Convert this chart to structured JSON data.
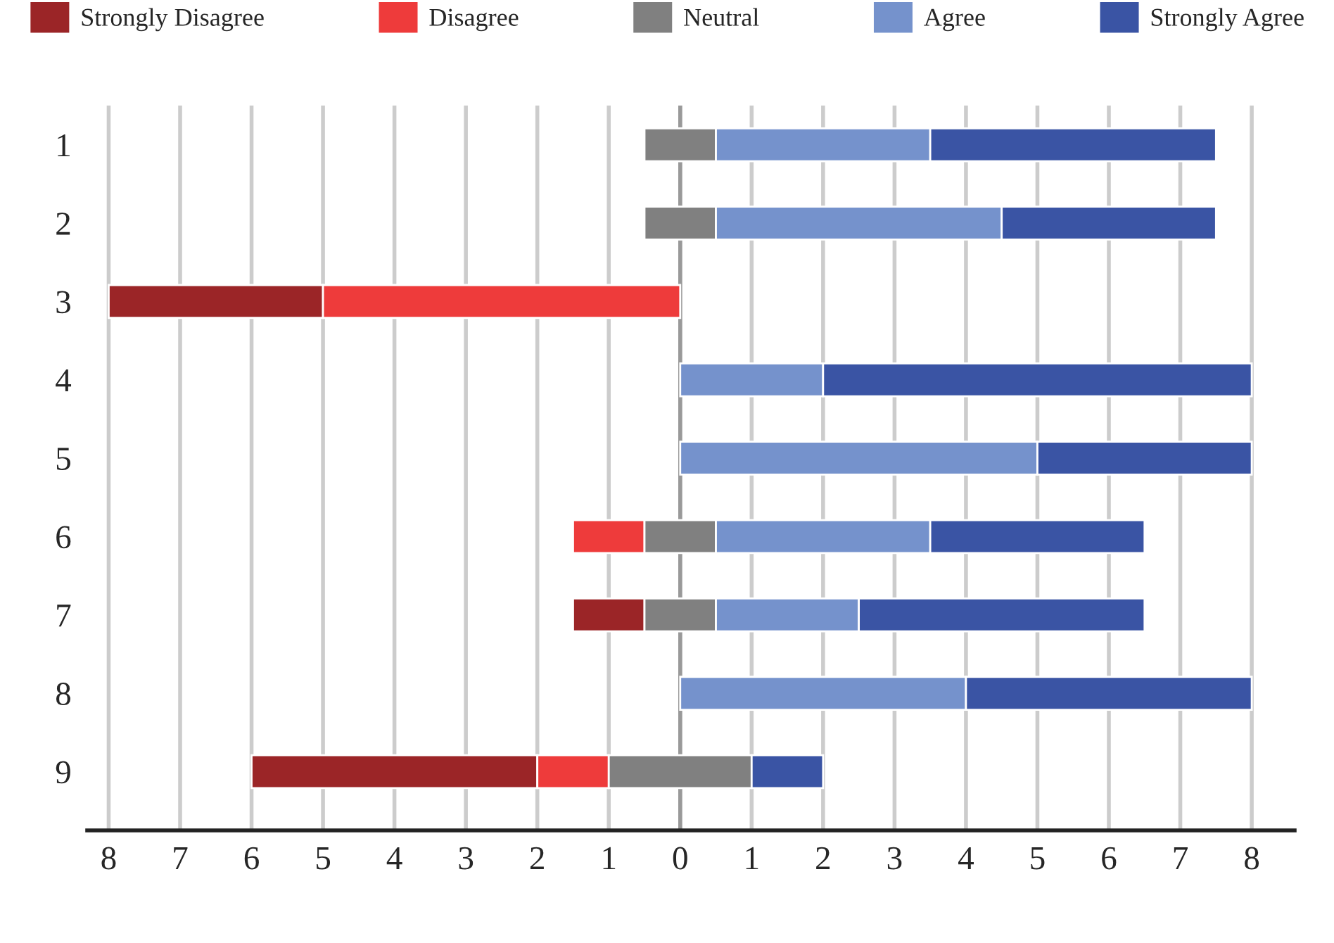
{
  "chart_data": {
    "type": "bar",
    "orientation": "horizontal",
    "categories": [
      "1",
      "2",
      "3",
      "4",
      "5",
      "6",
      "7",
      "8",
      "9"
    ],
    "series": [
      {
        "name": "Strongly Disagree",
        "color": "#9b2527",
        "values": [
          null,
          null,
          3,
          null,
          null,
          null,
          1,
          null,
          4
        ],
        "base": [
          null,
          null,
          -8,
          null,
          null,
          null,
          -1.5,
          null,
          -6
        ]
      },
      {
        "name": "Disagree",
        "color": "#ee3b3b",
        "values": [
          null,
          null,
          5,
          null,
          null,
          1,
          null,
          null,
          1
        ],
        "base": [
          null,
          null,
          -5,
          null,
          null,
          -1.5,
          null,
          null,
          -2
        ]
      },
      {
        "name": "Neutral",
        "color": "#808080",
        "values": [
          1,
          1,
          null,
          null,
          null,
          1,
          1,
          null,
          2
        ],
        "base": [
          -0.5,
          -0.5,
          null,
          null,
          null,
          -0.5,
          -0.5,
          null,
          -1
        ]
      },
      {
        "name": "Agree",
        "color": "#7592cc",
        "values": [
          3,
          4,
          null,
          2,
          5,
          3,
          2,
          4,
          null
        ],
        "base": [
          0.5,
          0.5,
          null,
          0,
          0,
          0.5,
          0.5,
          0,
          null
        ]
      },
      {
        "name": "Strongly Agree",
        "color": "#3a54a4",
        "values": [
          4,
          3,
          null,
          6,
          3,
          3,
          4,
          4,
          1
        ],
        "base": [
          3.5,
          4.5,
          null,
          2,
          5,
          3.5,
          2.5,
          4,
          1
        ]
      }
    ],
    "xlim": [
      -8.3,
      8.6
    ],
    "xticks": [
      {
        "value": -8,
        "label": "8"
      },
      {
        "value": -7,
        "label": "7"
      },
      {
        "value": -6,
        "label": "6"
      },
      {
        "value": -5,
        "label": "5"
      },
      {
        "value": -4,
        "label": "4"
      },
      {
        "value": -3,
        "label": "3"
      },
      {
        "value": -2,
        "label": "2"
      },
      {
        "value": -1,
        "label": "1"
      },
      0,
      1,
      2,
      3,
      4,
      5,
      6,
      7,
      8
    ],
    "ref_lines": [
      {
        "axis": "x",
        "value": 0,
        "color": "#999999"
      }
    ],
    "grid": "x",
    "legend": "top"
  }
}
